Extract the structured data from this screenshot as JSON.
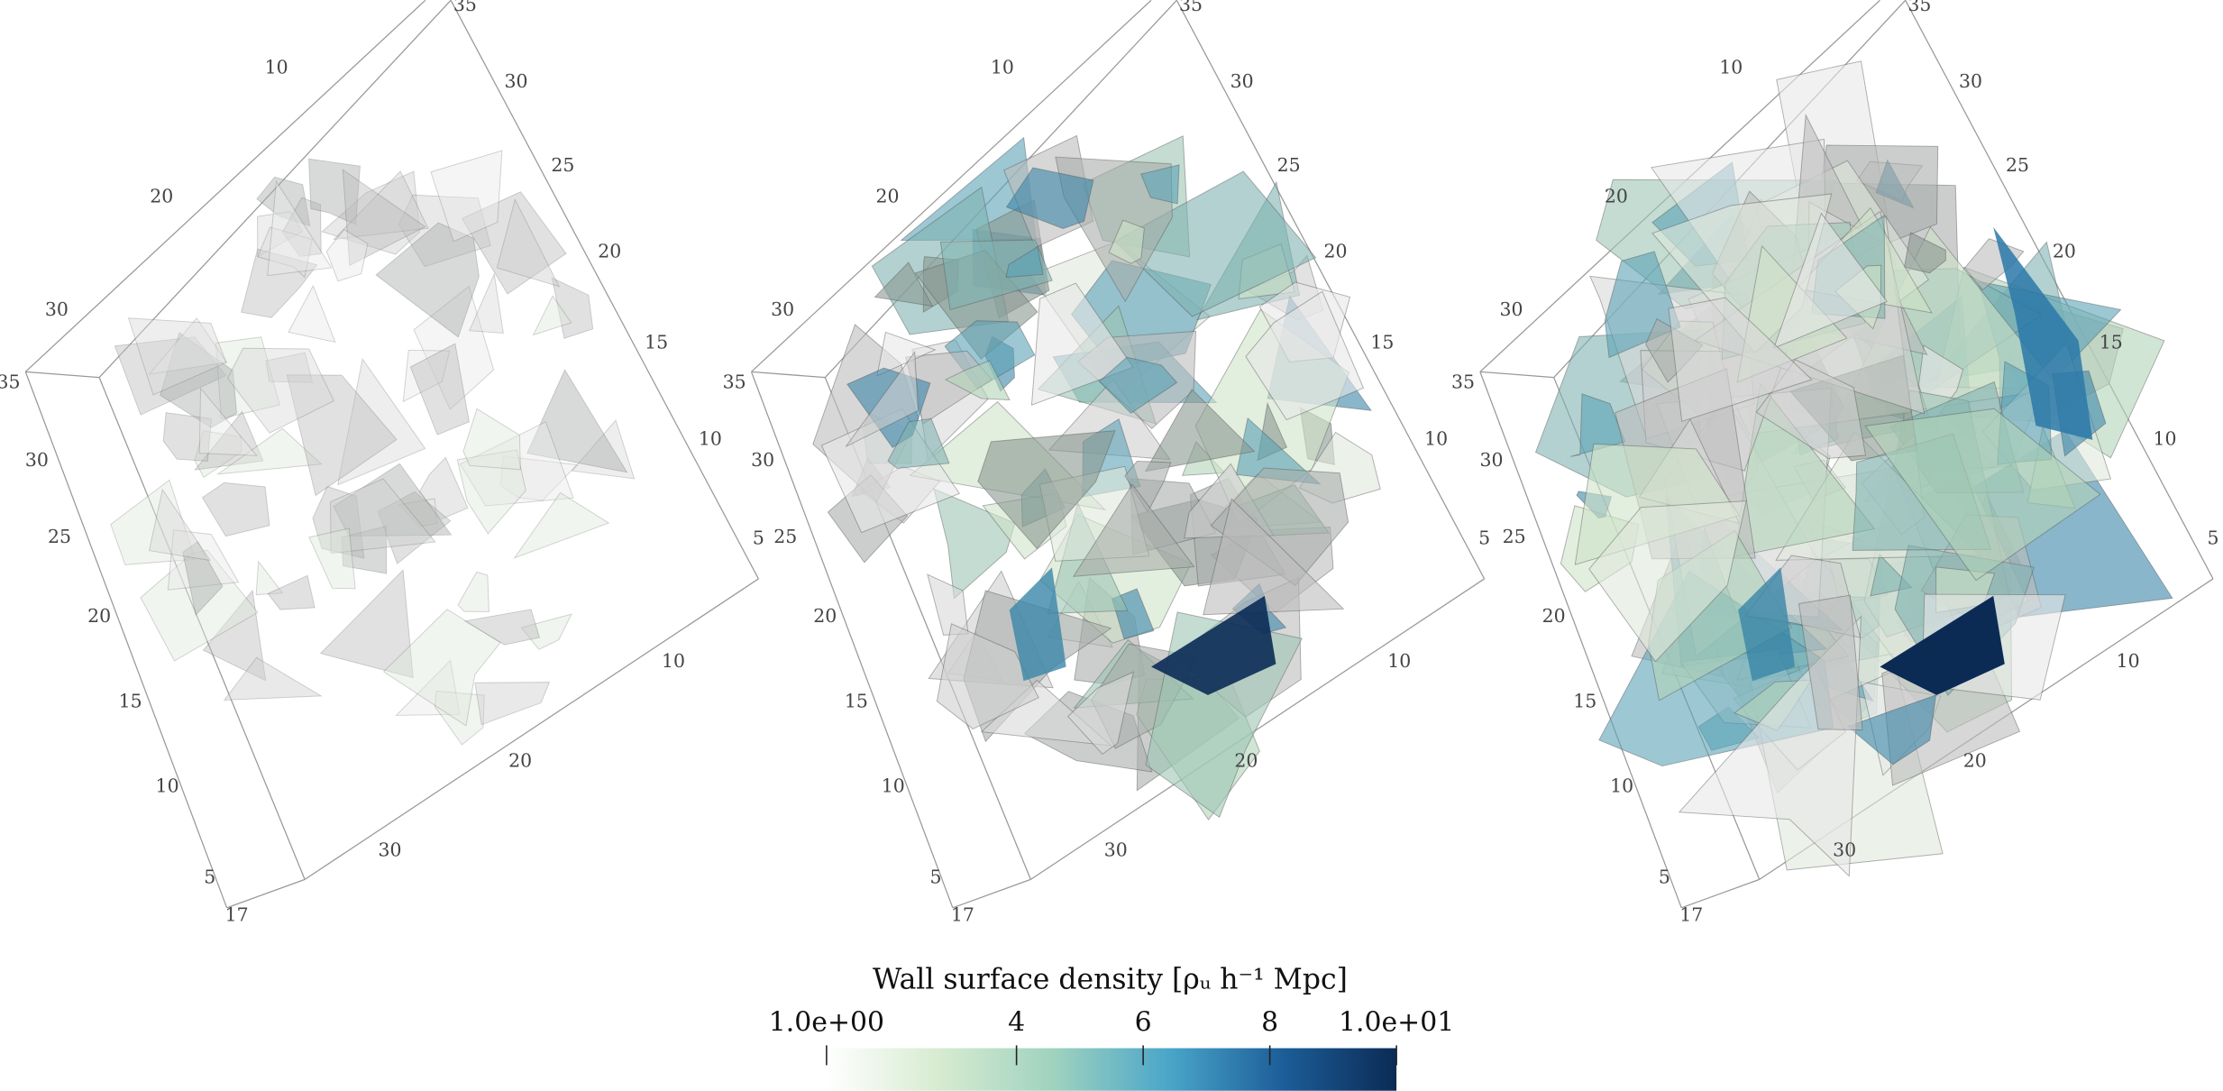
{
  "axis_labels": {
    "top_left": [
      "10",
      "20",
      "30",
      "35"
    ],
    "top_right": [
      "35",
      "30",
      "25",
      "20",
      "15",
      "10",
      "5"
    ],
    "left": [
      "30",
      "25",
      "20",
      "15",
      "10",
      "5",
      "17"
    ],
    "bottom": [
      "10",
      "20",
      "30"
    ]
  },
  "colorbar": {
    "title": "Wall surface density [ρᵤ h⁻¹ Mpc]",
    "lim": [
      1,
      10
    ],
    "ticks": [
      {
        "value": 1,
        "label": "1.0e+00"
      },
      4,
      6,
      8,
      {
        "value": 10,
        "label": "1.0e+01"
      }
    ],
    "colors": [
      "#ffffff",
      "#d6ebd0",
      "#9fd2bf",
      "#4aa6c9",
      "#1c5e99",
      "#0b2b55"
    ]
  }
}
